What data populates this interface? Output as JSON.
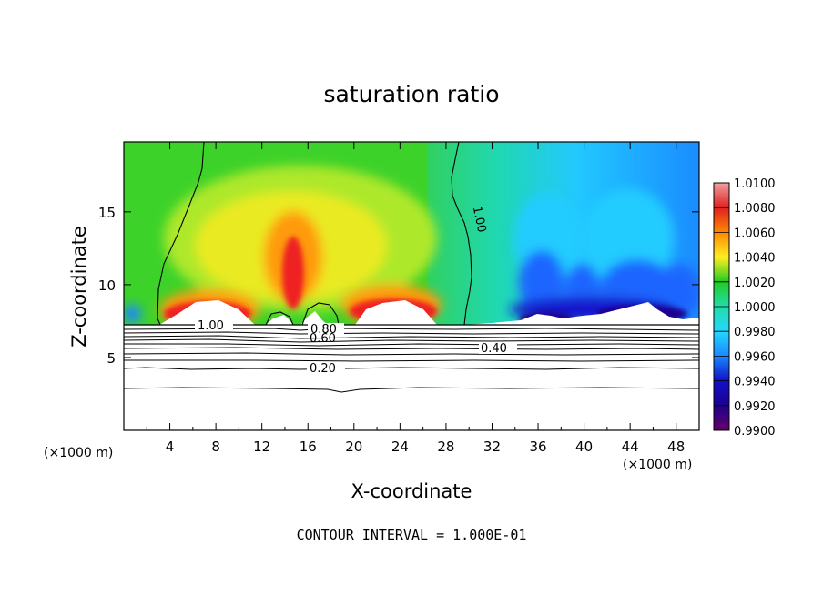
{
  "chart_data": {
    "type": "heatmap",
    "title": "saturation ratio",
    "xlabel": "X-coordinate",
    "ylabel": "Z-coordinate",
    "x_unit": "(×1000 m)",
    "footer": "CONTOUR INTERVAL = 1.000E-01",
    "xlim": [
      0,
      50
    ],
    "ylim": [
      0,
      19.8
    ],
    "x_ticks": [
      "4",
      "8",
      "12",
      "16",
      "20",
      "24",
      "28",
      "32",
      "36",
      "40",
      "44",
      "48"
    ],
    "x_tick_values": [
      4,
      8,
      12,
      16,
      20,
      24,
      28,
      32,
      36,
      40,
      44,
      48
    ],
    "y_ticks": [
      "5",
      "10",
      "15"
    ],
    "y_tick_values": [
      5,
      10,
      15
    ],
    "colorbar": {
      "min": 0.99,
      "max": 1.01,
      "labels": [
        "1.0100",
        "1.0080",
        "1.0060",
        "1.0040",
        "1.0020",
        "1.0000",
        "0.9980",
        "0.9960",
        "0.9940",
        "0.9920",
        "0.9900"
      ],
      "colors": [
        "#f0a0a0",
        "#e02020",
        "#ff8800",
        "#ffee22",
        "#22cc22",
        "#22ddaa",
        "#22d8ff",
        "#1a88ff",
        "#1010c8",
        "#1e0090",
        "#660066"
      ]
    },
    "contour_labels": [
      {
        "text": "1.00",
        "x": 6.8,
        "z": 7.3
      },
      {
        "text": "1.00",
        "x": 29.2,
        "z": 15.4
      },
      {
        "text": "0.80",
        "x": 17.7,
        "z": 7.1
      },
      {
        "text": "0.60",
        "x": 17.5,
        "z": 6.3
      },
      {
        "text": "0.40",
        "x": 32.3,
        "z": 5.6
      },
      {
        "text": "0.20",
        "x": 17.7,
        "z": 4.3
      }
    ]
  }
}
